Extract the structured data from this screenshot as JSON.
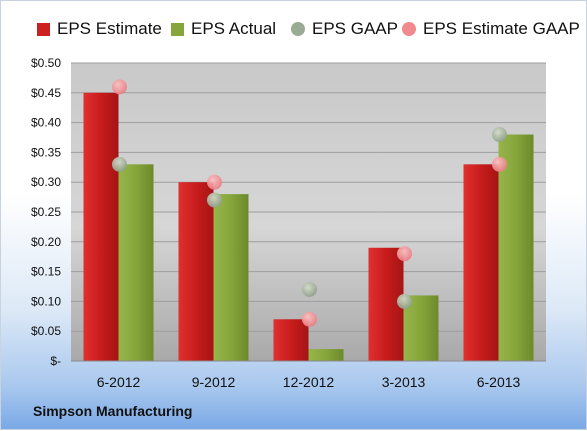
{
  "chart_data": {
    "type": "bar",
    "categories": [
      "6-2012",
      "9-2012",
      "12-2012",
      "3-2013",
      "6-2013"
    ],
    "series": [
      {
        "name": "EPS Estimate",
        "kind": "bar",
        "color": "#cc1f1f",
        "values": [
          0.45,
          0.3,
          0.07,
          0.19,
          0.33
        ]
      },
      {
        "name": "EPS Actual",
        "kind": "bar",
        "color": "#86a53b",
        "values": [
          0.33,
          0.28,
          0.02,
          0.11,
          0.38
        ]
      },
      {
        "name": "EPS GAAP",
        "kind": "marker",
        "color": "#9aab94",
        "values": [
          0.33,
          0.27,
          0.12,
          0.1,
          0.38
        ]
      },
      {
        "name": "EPS Estimate GAAP",
        "kind": "marker",
        "color": "#f08a8e",
        "values": [
          0.46,
          0.3,
          0.07,
          0.18,
          0.33
        ]
      }
    ],
    "yticks": [
      "$-",
      "$0.05",
      "$0.10",
      "$0.15",
      "$0.20",
      "$0.25",
      "$0.30",
      "$0.35",
      "$0.40",
      "$0.45",
      "$0.50"
    ],
    "ylim": [
      0,
      0.5
    ],
    "grid": true,
    "legend": "top",
    "plot_background": "#c8c8c8",
    "footer": "Simpson Manufacturing"
  }
}
